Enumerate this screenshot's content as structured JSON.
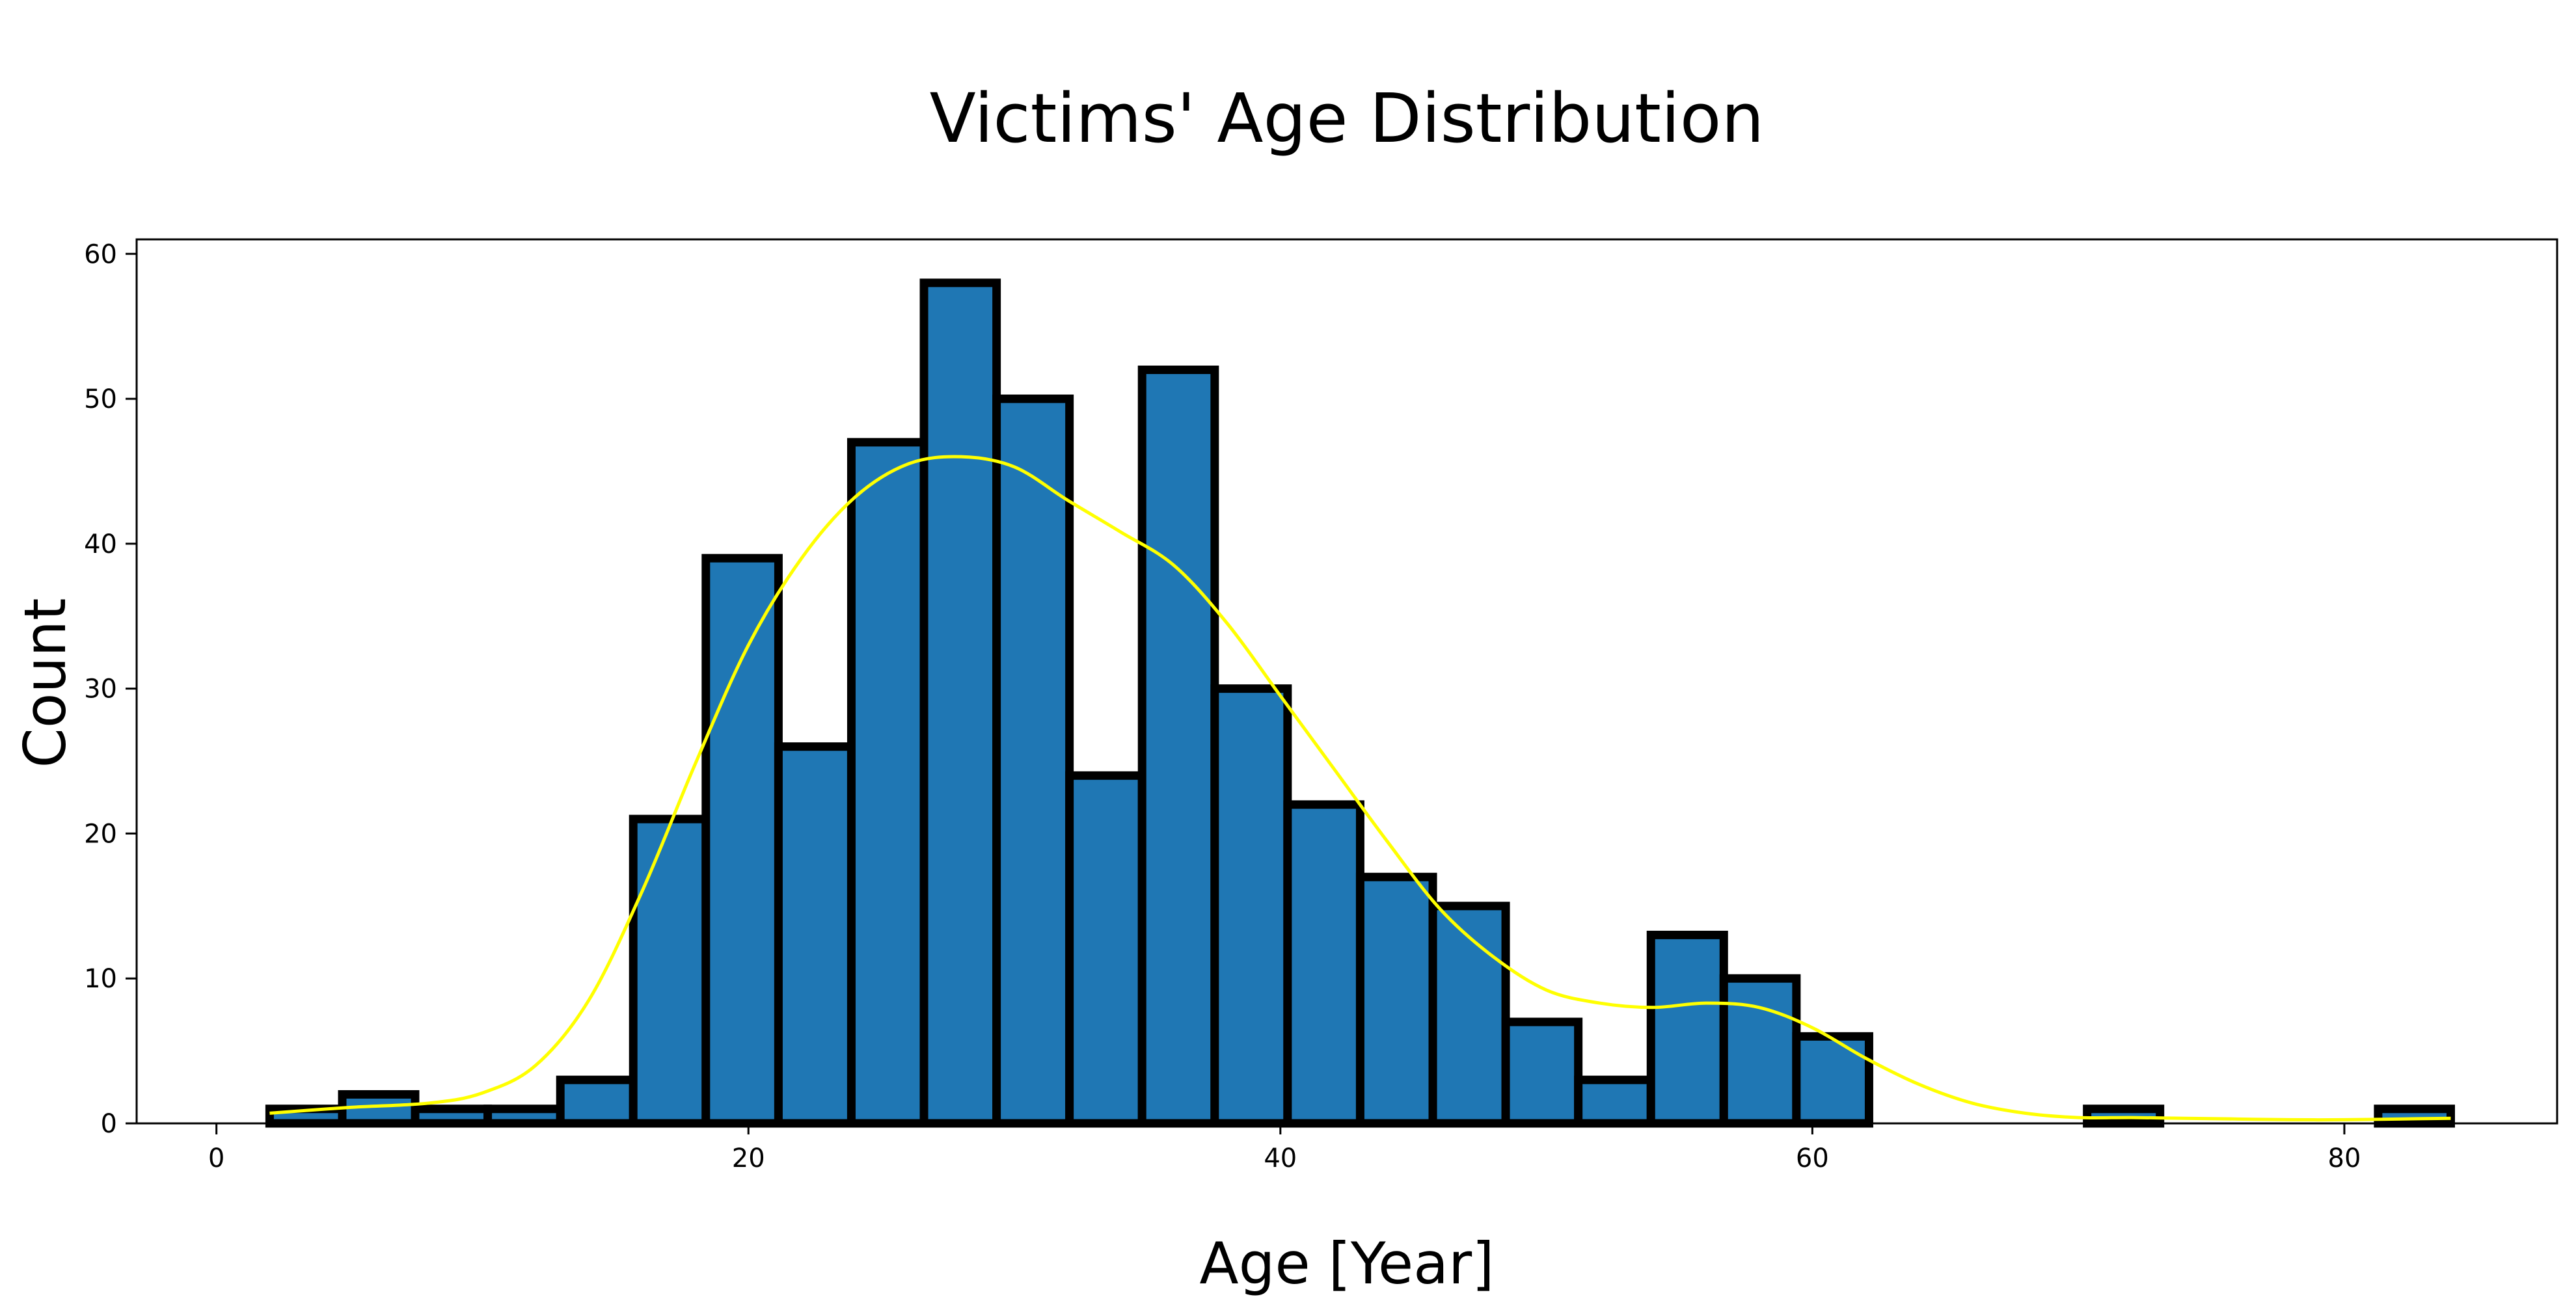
{
  "chart_data": {
    "type": "bar",
    "title": "Victims' Age Distribution",
    "xlabel": "Age [Year]",
    "ylabel": "Count",
    "xlim": [
      -3,
      88
    ],
    "ylim": [
      0,
      61
    ],
    "xticks": [
      0,
      20,
      40,
      60,
      80
    ],
    "yticks": [
      0,
      10,
      20,
      30,
      40,
      50,
      60
    ],
    "grid": false,
    "colors": {
      "bar": "#1f77b4",
      "edge": "#000000",
      "kde": "#ffff00"
    },
    "bins": [
      {
        "x0": 2.0,
        "x1": 4.73,
        "count": 1
      },
      {
        "x0": 4.73,
        "x1": 7.47,
        "count": 2
      },
      {
        "x0": 7.47,
        "x1": 10.2,
        "count": 1
      },
      {
        "x0": 10.2,
        "x1": 12.93,
        "count": 1
      },
      {
        "x0": 12.93,
        "x1": 15.67,
        "count": 3
      },
      {
        "x0": 15.67,
        "x1": 18.4,
        "count": 21
      },
      {
        "x0": 18.4,
        "x1": 21.13,
        "count": 39
      },
      {
        "x0": 21.13,
        "x1": 23.87,
        "count": 26
      },
      {
        "x0": 23.87,
        "x1": 26.6,
        "count": 47
      },
      {
        "x0": 26.6,
        "x1": 29.33,
        "count": 58
      },
      {
        "x0": 29.33,
        "x1": 32.07,
        "count": 50
      },
      {
        "x0": 32.07,
        "x1": 34.8,
        "count": 24
      },
      {
        "x0": 34.8,
        "x1": 37.53,
        "count": 52
      },
      {
        "x0": 37.53,
        "x1": 40.27,
        "count": 30
      },
      {
        "x0": 40.27,
        "x1": 43.0,
        "count": 22
      },
      {
        "x0": 43.0,
        "x1": 45.73,
        "count": 17
      },
      {
        "x0": 45.73,
        "x1": 48.47,
        "count": 15
      },
      {
        "x0": 48.47,
        "x1": 51.2,
        "count": 7
      },
      {
        "x0": 51.2,
        "x1": 53.93,
        "count": 3
      },
      {
        "x0": 53.93,
        "x1": 56.67,
        "count": 13
      },
      {
        "x0": 56.67,
        "x1": 59.4,
        "count": 10
      },
      {
        "x0": 59.4,
        "x1": 62.13,
        "count": 6
      },
      {
        "x0": 62.13,
        "x1": 64.87,
        "count": 0
      },
      {
        "x0": 64.87,
        "x1": 67.6,
        "count": 0
      },
      {
        "x0": 67.6,
        "x1": 70.33,
        "count": 0
      },
      {
        "x0": 70.33,
        "x1": 73.07,
        "count": 1
      },
      {
        "x0": 73.07,
        "x1": 75.8,
        "count": 0
      },
      {
        "x0": 75.8,
        "x1": 78.53,
        "count": 0
      },
      {
        "x0": 78.53,
        "x1": 81.27,
        "count": 0
      },
      {
        "x0": 81.27,
        "x1": 84.0,
        "count": 1
      }
    ],
    "kde": {
      "x": [
        2,
        5,
        8,
        10,
        12,
        14,
        16,
        18,
        20,
        22,
        24,
        26,
        28,
        30,
        32,
        34,
        36,
        38,
        40,
        42,
        44,
        46,
        48,
        50,
        52,
        54,
        56,
        58,
        60,
        62,
        64,
        66,
        68,
        70,
        72,
        74,
        76,
        78,
        80,
        82,
        84
      ],
      "y": [
        0.7,
        1.1,
        1.4,
        2.1,
        4.0,
        8.5,
        16.0,
        24.8,
        33.0,
        39.0,
        43.2,
        45.5,
        46.0,
        45.3,
        43.0,
        40.8,
        38.5,
        34.5,
        29.5,
        24.5,
        19.5,
        14.8,
        11.5,
        9.2,
        8.3,
        8.0,
        8.3,
        8.0,
        6.6,
        4.5,
        2.7,
        1.4,
        0.7,
        0.4,
        0.4,
        0.35,
        0.3,
        0.25,
        0.25,
        0.3,
        0.35
      ]
    }
  }
}
